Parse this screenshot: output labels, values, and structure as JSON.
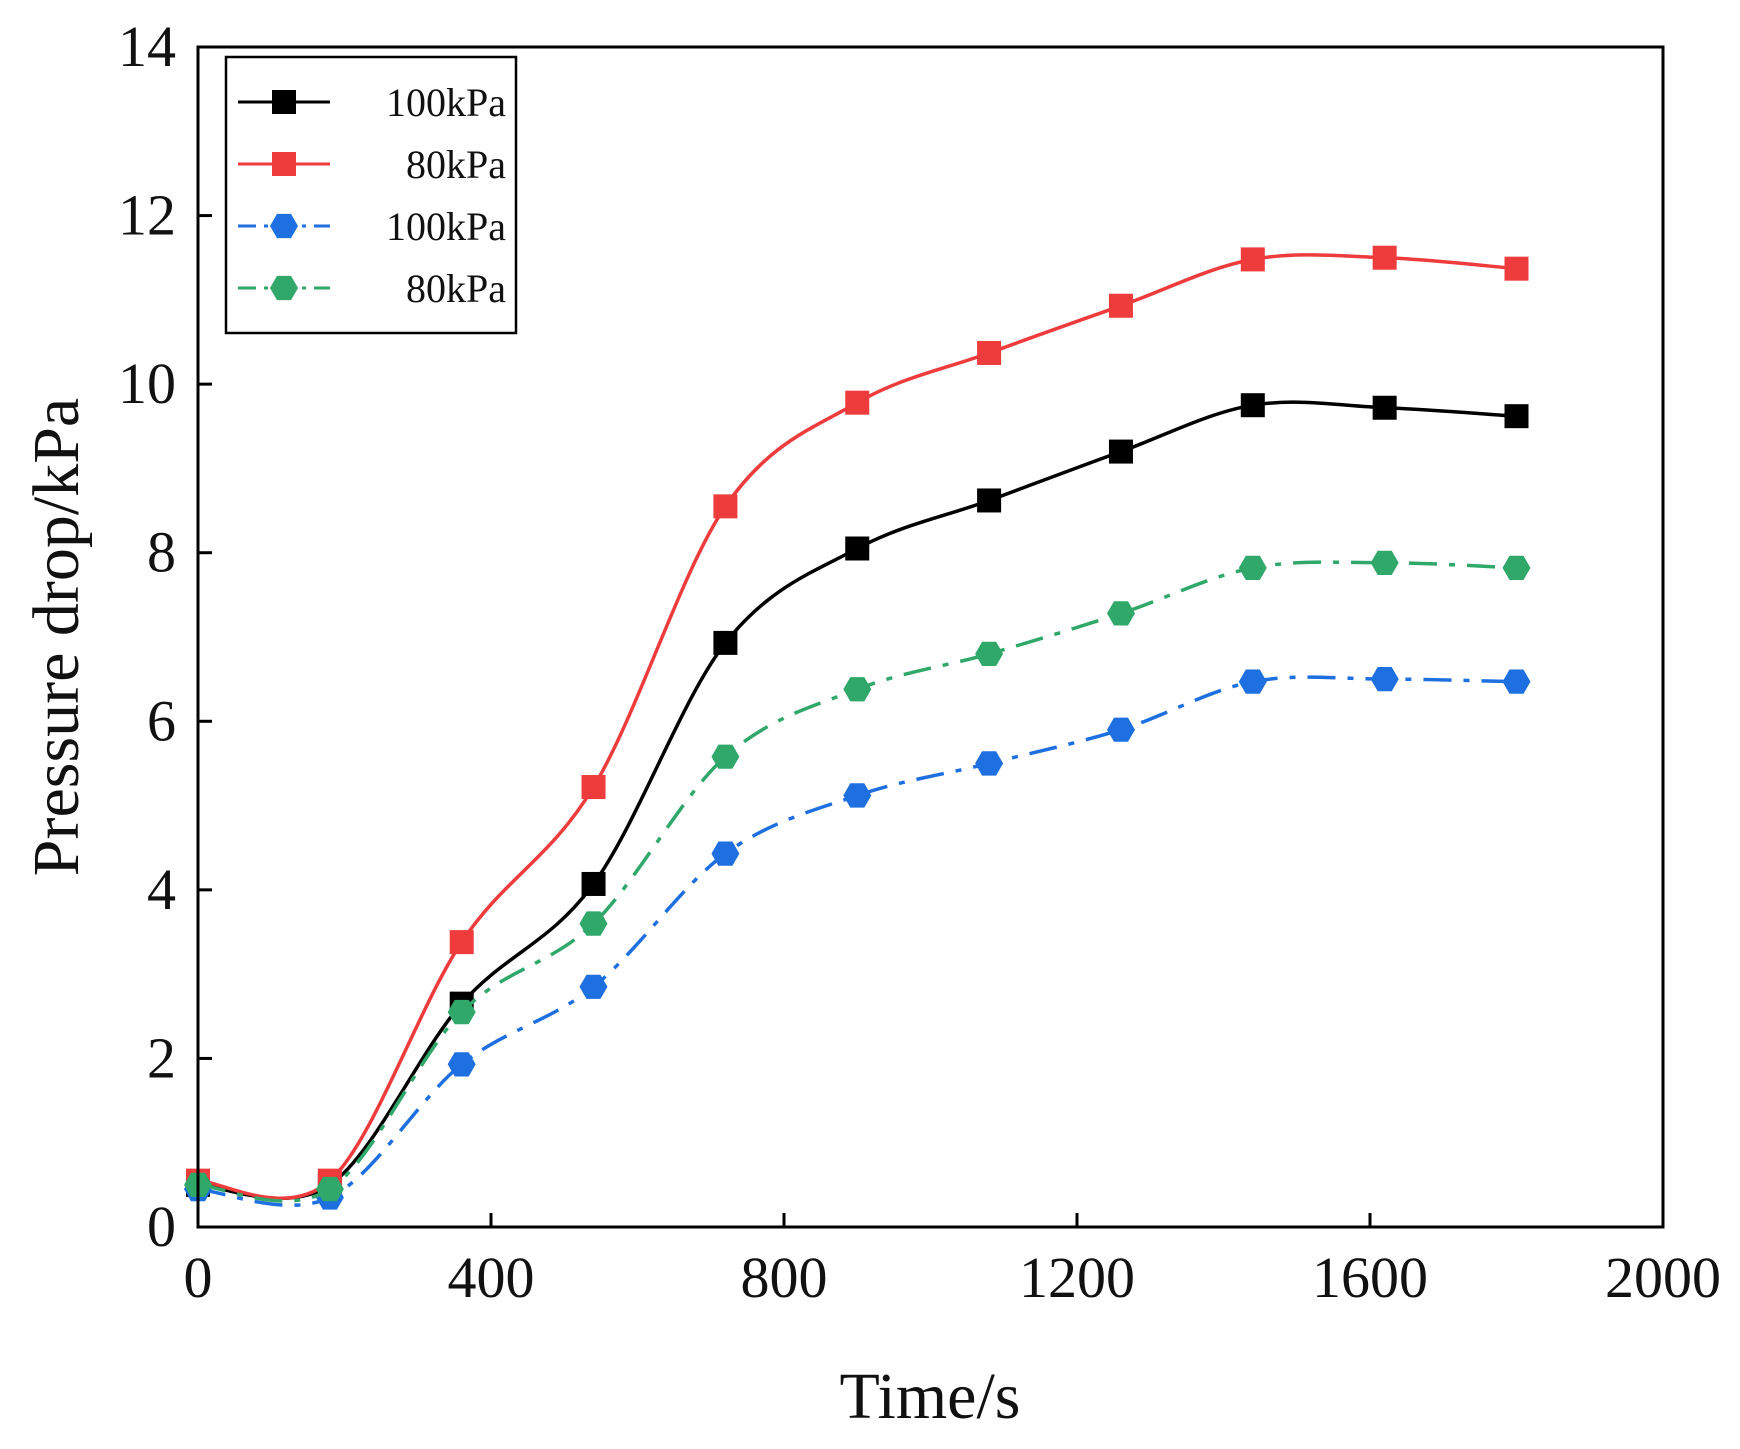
{
  "chart_data": {
    "type": "line",
    "title": "",
    "xlabel": "Time/s",
    "ylabel": "Pressure drop/kPa",
    "xlim": [
      0,
      2000
    ],
    "ylim": [
      0,
      14
    ],
    "xticks": [
      0,
      400,
      800,
      1200,
      1600,
      2000
    ],
    "yticks": [
      0,
      2,
      4,
      6,
      8,
      10,
      12,
      14
    ],
    "grid": false,
    "legend_position": "top-left",
    "x": [
      0,
      180,
      360,
      540,
      720,
      900,
      1080,
      1260,
      1440,
      1620,
      1800
    ],
    "series": [
      {
        "name": "100kPa",
        "color": "#000000",
        "marker": "square",
        "line_style": "solid",
        "values": [
          0.5,
          0.5,
          2.65,
          4.07,
          6.93,
          8.05,
          8.62,
          9.2,
          9.75,
          9.72,
          9.62
        ]
      },
      {
        "name": "80kPa",
        "color": "#ee3b3b",
        "marker": "square",
        "line_style": "solid",
        "values": [
          0.55,
          0.55,
          3.38,
          5.22,
          8.55,
          9.78,
          10.37,
          10.93,
          11.48,
          11.5,
          11.37
        ]
      },
      {
        "name": "100kPa",
        "color": "#1e6fe0",
        "marker": "hexagon",
        "line_style": "dash-dot",
        "values": [
          0.45,
          0.35,
          1.93,
          2.85,
          4.43,
          5.12,
          5.5,
          5.9,
          6.47,
          6.5,
          6.47
        ]
      },
      {
        "name": "80kPa",
        "color": "#2fa86a",
        "marker": "hexagon",
        "line_style": "dash-dot",
        "values": [
          0.5,
          0.45,
          2.55,
          3.6,
          5.58,
          6.38,
          6.8,
          7.28,
          7.82,
          7.88,
          7.82
        ]
      }
    ]
  }
}
